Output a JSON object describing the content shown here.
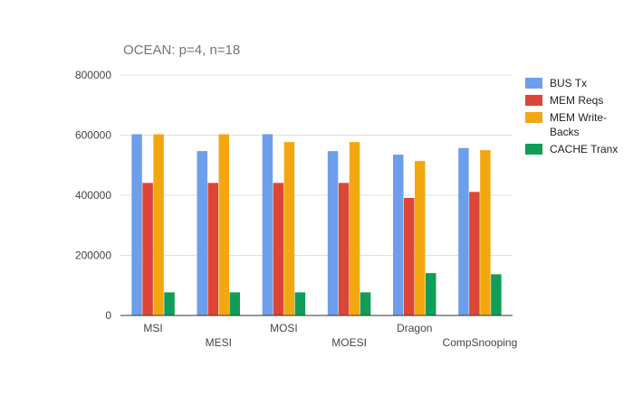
{
  "chart_data": {
    "type": "bar",
    "title": "OCEAN: p=4, n=18",
    "xlabel": "",
    "ylabel": "",
    "categories": [
      "MSI",
      "MESI",
      "MOSI",
      "MOESI",
      "Dragon",
      "CompSnooping"
    ],
    "ylim": [
      0,
      800000
    ],
    "yticks": [
      0,
      200000,
      400000,
      600000,
      800000
    ],
    "grid": true,
    "legend_position": "right",
    "series": [
      {
        "name": "BUS Tx",
        "color": "#6d9eeb",
        "values": [
          603000,
          547000,
          603000,
          547000,
          535000,
          557000
        ]
      },
      {
        "name": "MEM Reqs",
        "color": "#dc4637",
        "values": [
          441000,
          441000,
          441000,
          441000,
          391000,
          411000
        ]
      },
      {
        "name": "MEM Write-Backs",
        "color": "#f3a70f",
        "values": [
          603000,
          603000,
          577000,
          577000,
          514000,
          550000
        ]
      },
      {
        "name": "CACHE Tranx",
        "color": "#109d58",
        "values": [
          77000,
          77000,
          77000,
          77000,
          141000,
          137000
        ]
      }
    ]
  }
}
